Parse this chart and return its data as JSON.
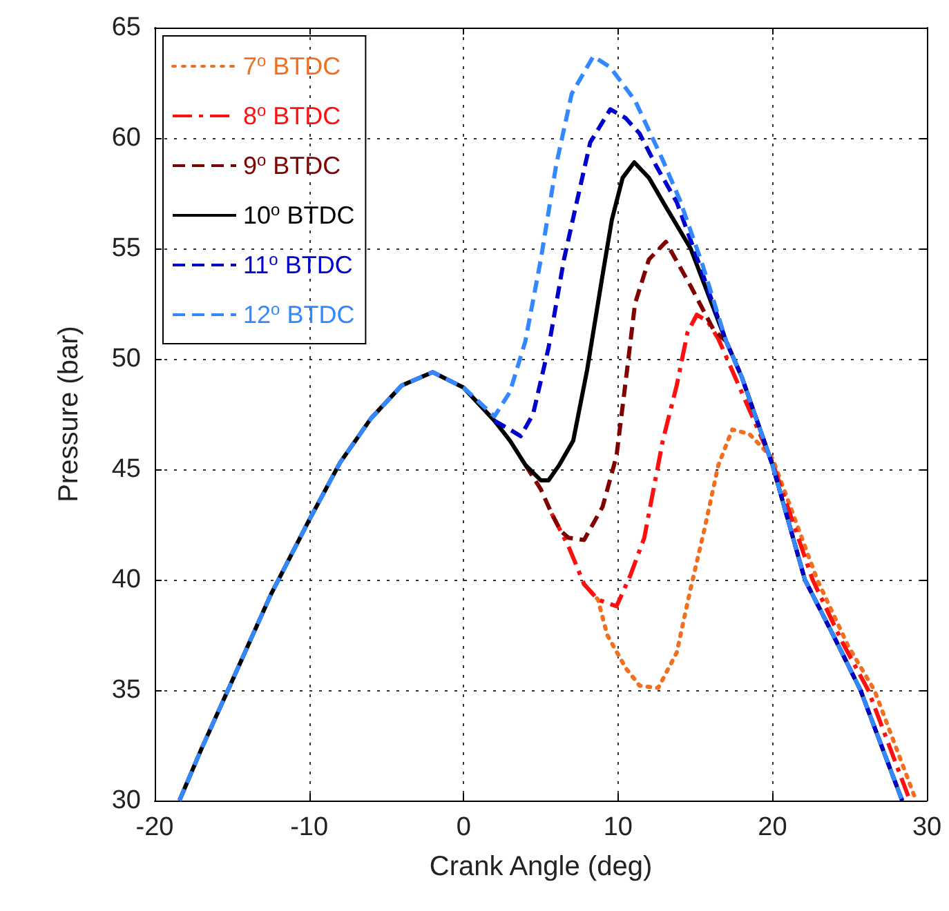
{
  "chart_data": {
    "type": "line",
    "xlabel": "Crank Angle (deg)",
    "ylabel": "Pressure (bar)",
    "xlim": [
      -20,
      30
    ],
    "xticks": [
      -20,
      -10,
      0,
      10,
      20,
      30
    ],
    "ylim": [
      30,
      65
    ],
    "yticks": [
      30,
      35,
      40,
      45,
      50,
      55,
      60,
      65
    ],
    "grid": true,
    "legend": "top left",
    "marker": "none",
    "series": [
      {
        "name": "7$^{o}$ BTDC",
        "color": "#f07020",
        "line_style": "dotted",
        "x": [
          7.8,
          8.7,
          9.3,
          10.5,
          11.4,
          12.6,
          13.8,
          14.7,
          15.6,
          16.5,
          17.4,
          18.5,
          20,
          22.9,
          24.9,
          26.6,
          29.3
        ],
        "values": [
          39.8,
          39.1,
          37.5,
          36,
          35.2,
          35.1,
          36.7,
          39.6,
          42.3,
          45.2,
          46.8,
          46.6,
          45.5,
          40,
          37,
          35,
          30
        ]
      },
      {
        "name": "8$^{o}$ BTDC",
        "color": "#ff1010",
        "line_style": "dashdot",
        "x": [
          5.7,
          6.8,
          7.8,
          8.7,
          9.9,
          10.8,
          11.7,
          12.9,
          13.8,
          14.5,
          15.1,
          15.8,
          16.5,
          18,
          20,
          22.6,
          24.5,
          26.2,
          28.9
        ],
        "values": [
          43,
          41.5,
          39.8,
          39.1,
          38.8,
          40.2,
          41.9,
          46.3,
          48.8,
          51.2,
          52,
          51.7,
          50.9,
          48.5,
          45.3,
          40,
          37.2,
          35,
          30
        ]
      },
      {
        "name": "9$^{o}$ BTDC",
        "color": "#800000",
        "line_style": "dashed",
        "x": [
          4,
          5,
          5.7,
          6.3,
          6.8,
          7.8,
          9,
          9.9,
          10.5,
          11.1,
          12,
          13.1,
          14.7,
          16.2,
          17
        ],
        "values": [
          45.2,
          44.1,
          43,
          42.2,
          41.9,
          41.8,
          43.3,
          45.6,
          49,
          52.5,
          54.5,
          55.3,
          53.3,
          51.3,
          50.8
        ]
      },
      {
        "name": "10$^{o}$ BTDC",
        "color": "#000000",
        "line_style": "solid",
        "x": [
          -18.4,
          -17,
          -15,
          -12.5,
          -10,
          -8,
          -6,
          -4,
          -2,
          0,
          2,
          3,
          4,
          5,
          5.5,
          6.2,
          7.1,
          8,
          9,
          9.6,
          10.3,
          11.05,
          12,
          13,
          14.7,
          17,
          18,
          20,
          22.1,
          24,
          25.7,
          28.4
        ],
        "values": [
          30,
          32.3,
          35.4,
          39.3,
          42.7,
          45.3,
          47.3,
          48.8,
          49.4,
          48.7,
          47.2,
          46.3,
          45.2,
          44.5,
          44.5,
          45.2,
          46.3,
          49.5,
          53.8,
          56.3,
          58.2,
          58.9,
          58.2,
          57,
          55,
          50.8,
          49.2,
          45.2,
          40,
          37.4,
          35,
          30
        ]
      },
      {
        "name": "11$^{o}$ BTDC",
        "color": "#0000cc",
        "line_style": "dashed",
        "x": [
          2,
          3,
          3.7,
          4.5,
          5.5,
          6.5,
          7.2,
          8.2,
          9.5,
          10.5,
          11.4,
          12.5,
          13.8,
          15,
          17,
          18,
          20,
          22.1,
          24,
          25.7,
          28.4
        ],
        "values": [
          47.2,
          46.8,
          46.5,
          47.5,
          50.5,
          54.5,
          56.7,
          59.8,
          61.3,
          60.9,
          60.2,
          58.7,
          57.1,
          54.8,
          50.8,
          49.2,
          45.2,
          40,
          37.4,
          35,
          30
        ]
      },
      {
        "name": "12$^{o}$ BTDC",
        "color": "#3388ff",
        "line_style": "dashed",
        "x": [
          -18.4,
          -17,
          -15,
          -12.5,
          -10,
          -8,
          -6,
          -4,
          -2,
          0,
          2,
          3,
          4,
          5,
          6,
          7,
          8.4,
          9.5,
          11.1,
          12.9,
          14,
          15.5,
          17,
          18,
          20,
          22.1,
          24,
          25.7,
          28.4
        ],
        "values": [
          30,
          32.3,
          35.4,
          39.3,
          42.7,
          45.3,
          47.3,
          48.8,
          49.4,
          48.7,
          47.4,
          48.5,
          50.8,
          54.5,
          58.8,
          62,
          63.7,
          63.2,
          61.7,
          59,
          57.2,
          54.2,
          50.8,
          49.2,
          45.2,
          40,
          37.4,
          35,
          30
        ]
      }
    ]
  }
}
